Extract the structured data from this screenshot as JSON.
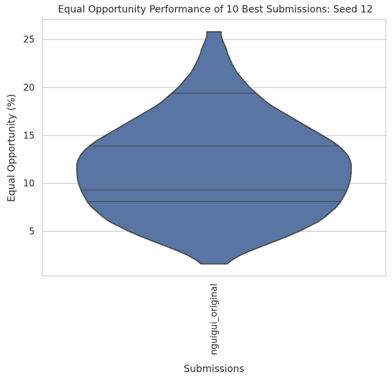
{
  "chart_data": {
    "type": "violin",
    "title": "Equal Opportunity Performance of 10 Best Submissions: Seed 12",
    "xlabel": "Submissions",
    "ylabel": "Equal Opportunity (%)",
    "categories": [
      "nguigui_original"
    ],
    "ylim": [
      0.35,
      27.1
    ],
    "yticks": [
      5,
      10,
      15,
      20,
      25
    ],
    "grid": "y",
    "color": "#5875a4",
    "edge_color": "#474747",
    "violin": {
      "min": 1.6,
      "max": 25.8,
      "profile": [
        [
          1.6,
          0.094
        ],
        [
          2.0,
          0.13
        ],
        [
          2.5,
          0.19
        ],
        [
          3.0,
          0.27
        ],
        [
          3.5,
          0.36
        ],
        [
          4.0,
          0.45
        ],
        [
          4.5,
          0.54
        ],
        [
          5.0,
          0.62
        ],
        [
          5.5,
          0.69
        ],
        [
          6.0,
          0.76
        ],
        [
          6.5,
          0.81
        ],
        [
          7.0,
          0.85
        ],
        [
          7.5,
          0.89
        ],
        [
          8.0,
          0.92
        ],
        [
          8.5,
          0.94
        ],
        [
          9.0,
          0.96
        ],
        [
          9.5,
          0.975
        ],
        [
          10.0,
          0.987
        ],
        [
          10.5,
          0.995
        ],
        [
          11.0,
          0.999
        ],
        [
          11.5,
          1.0
        ],
        [
          12.0,
          1.0
        ],
        [
          12.5,
          0.99
        ],
        [
          13.0,
          0.97
        ],
        [
          13.5,
          0.94
        ],
        [
          14.0,
          0.9
        ],
        [
          14.5,
          0.85
        ],
        [
          15.0,
          0.79
        ],
        [
          15.5,
          0.73
        ],
        [
          16.0,
          0.67
        ],
        [
          16.5,
          0.61
        ],
        [
          17.0,
          0.55
        ],
        [
          17.5,
          0.49
        ],
        [
          18.0,
          0.43
        ],
        [
          18.5,
          0.38
        ],
        [
          19.0,
          0.34
        ],
        [
          19.5,
          0.3
        ],
        [
          20.0,
          0.26
        ],
        [
          20.5,
          0.23
        ],
        [
          21.0,
          0.2
        ],
        [
          21.5,
          0.17
        ],
        [
          22.0,
          0.15
        ],
        [
          22.5,
          0.13
        ],
        [
          23.0,
          0.115
        ],
        [
          23.5,
          0.1
        ],
        [
          24.0,
          0.09
        ],
        [
          24.5,
          0.075
        ],
        [
          25.0,
          0.06
        ],
        [
          25.4,
          0.052
        ],
        [
          25.8,
          0.052
        ]
      ],
      "inner_lines": [
        8.1,
        9.3,
        13.9,
        19.4
      ]
    }
  }
}
